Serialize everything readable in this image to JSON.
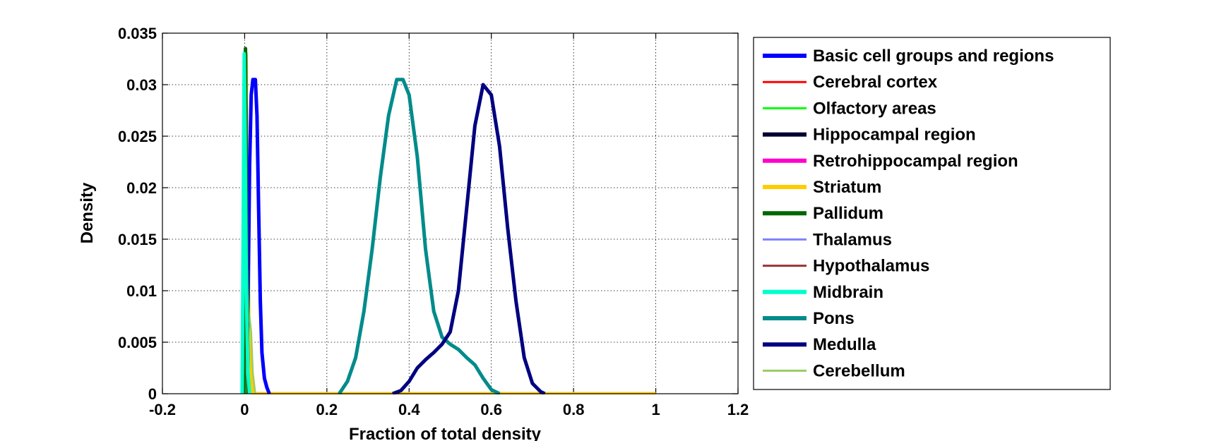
{
  "chart_data": {
    "type": "line",
    "title": "",
    "xlabel": "Fraction of total density",
    "ylabel": "Density",
    "xlim": [
      -0.2,
      1.2
    ],
    "ylim": [
      0,
      0.035
    ],
    "xticks": [
      "-0.2",
      "0",
      "0.2",
      "0.4",
      "0.6",
      "0.8",
      "1",
      "1.2"
    ],
    "yticks": [
      "0",
      "0.005",
      "0.01",
      "0.015",
      "0.02",
      "0.025",
      "0.03",
      "0.035"
    ],
    "grid": true,
    "legend_position": "outside-right",
    "series": [
      {
        "name": "Basic cell groups and regions",
        "color": "#0000ff",
        "width": "thick",
        "points": [
          [
            0.0,
            0
          ],
          [
            0.004,
            0.001
          ],
          [
            0.008,
            0.008
          ],
          [
            0.012,
            0.022
          ],
          [
            0.016,
            0.029
          ],
          [
            0.02,
            0.0305
          ],
          [
            0.026,
            0.0305
          ],
          [
            0.03,
            0.027
          ],
          [
            0.034,
            0.018
          ],
          [
            0.038,
            0.009
          ],
          [
            0.042,
            0.004
          ],
          [
            0.048,
            0.0015
          ],
          [
            0.054,
            0.0006
          ],
          [
            0.06,
            0
          ]
        ]
      },
      {
        "name": "Cerebral cortex",
        "color": "#ff0000",
        "width": "thin",
        "points": [
          [
            -0.002,
            0
          ],
          [
            0.0,
            0.02
          ],
          [
            0.002,
            0.033
          ],
          [
            0.004,
            0.02
          ],
          [
            0.008,
            0
          ]
        ]
      },
      {
        "name": "Olfactory areas",
        "color": "#00ff00",
        "width": "thin",
        "points": [
          [
            -0.002,
            0
          ],
          [
            0.0,
            0.02
          ],
          [
            0.002,
            0.033
          ],
          [
            0.004,
            0.02
          ],
          [
            0.008,
            0
          ]
        ]
      },
      {
        "name": "Hippocampal region",
        "color": "#000033",
        "width": "thick",
        "points": [
          [
            -0.002,
            0
          ],
          [
            0.0,
            0.02
          ],
          [
            0.002,
            0.033
          ],
          [
            0.004,
            0.02
          ],
          [
            0.008,
            0
          ]
        ]
      },
      {
        "name": "Retrohippocampal region",
        "color": "#ff00cc",
        "width": "thick",
        "points": [
          [
            -0.002,
            0
          ],
          [
            0.0,
            0.02
          ],
          [
            0.002,
            0.033
          ],
          [
            0.004,
            0.02
          ],
          [
            0.008,
            0
          ]
        ]
      },
      {
        "name": "Striatum",
        "color": "#ffcc00",
        "width": "thick",
        "points": [
          [
            -0.002,
            0
          ],
          [
            0.0,
            0.018
          ],
          [
            0.003,
            0.033
          ],
          [
            0.006,
            0.02
          ],
          [
            0.01,
            0.007
          ],
          [
            0.014,
            0.002
          ],
          [
            0.02,
            0
          ],
          [
            1.0,
            0
          ]
        ]
      },
      {
        "name": "Pallidum",
        "color": "#006600",
        "width": "thick",
        "points": [
          [
            -0.002,
            0
          ],
          [
            0.0,
            0.02
          ],
          [
            0.002,
            0.0335
          ],
          [
            0.004,
            0.02
          ],
          [
            0.008,
            0
          ]
        ]
      },
      {
        "name": "Thalamus",
        "color": "#8080ff",
        "width": "thin",
        "points": [
          [
            -0.002,
            0
          ],
          [
            0.0,
            0.02
          ],
          [
            0.002,
            0.033
          ],
          [
            0.004,
            0.02
          ],
          [
            0.008,
            0
          ]
        ]
      },
      {
        "name": "Hypothalamus",
        "color": "#993333",
        "width": "thin",
        "points": [
          [
            -0.002,
            0
          ],
          [
            0.0,
            0.02
          ],
          [
            0.002,
            0.033
          ],
          [
            0.004,
            0.02
          ],
          [
            0.008,
            0
          ]
        ]
      },
      {
        "name": "Midbrain",
        "color": "#00ffcc",
        "width": "thick",
        "points": [
          [
            -0.006,
            0
          ],
          [
            -0.003,
            0.02
          ],
          [
            -0.001,
            0.033
          ],
          [
            0.001,
            0.025
          ],
          [
            0.004,
            0.01
          ],
          [
            0.008,
            0.002
          ],
          [
            0.012,
            0
          ]
        ]
      },
      {
        "name": "Pons",
        "color": "#008b8b",
        "width": "thick",
        "points": [
          [
            0.23,
            0
          ],
          [
            0.25,
            0.0012
          ],
          [
            0.27,
            0.0035
          ],
          [
            0.29,
            0.008
          ],
          [
            0.31,
            0.014
          ],
          [
            0.33,
            0.021
          ],
          [
            0.35,
            0.027
          ],
          [
            0.37,
            0.0305
          ],
          [
            0.385,
            0.0305
          ],
          [
            0.4,
            0.029
          ],
          [
            0.42,
            0.023
          ],
          [
            0.44,
            0.014
          ],
          [
            0.46,
            0.008
          ],
          [
            0.48,
            0.0055
          ],
          [
            0.5,
            0.0048
          ],
          [
            0.52,
            0.0043
          ],
          [
            0.54,
            0.0035
          ],
          [
            0.56,
            0.0028
          ],
          [
            0.58,
            0.0015
          ],
          [
            0.6,
            0.0004
          ],
          [
            0.62,
            0
          ]
        ]
      },
      {
        "name": "Medulla",
        "color": "#000080",
        "width": "thick",
        "points": [
          [
            0.36,
            0
          ],
          [
            0.38,
            0.0003
          ],
          [
            0.4,
            0.0012
          ],
          [
            0.42,
            0.0025
          ],
          [
            0.44,
            0.0033
          ],
          [
            0.46,
            0.004
          ],
          [
            0.48,
            0.0048
          ],
          [
            0.5,
            0.006
          ],
          [
            0.52,
            0.01
          ],
          [
            0.54,
            0.018
          ],
          [
            0.56,
            0.026
          ],
          [
            0.58,
            0.03
          ],
          [
            0.6,
            0.029
          ],
          [
            0.62,
            0.024
          ],
          [
            0.64,
            0.016
          ],
          [
            0.66,
            0.009
          ],
          [
            0.68,
            0.0035
          ],
          [
            0.7,
            0.001
          ],
          [
            0.72,
            0.0002
          ],
          [
            0.73,
            0
          ]
        ]
      },
      {
        "name": "Cerebellum",
        "color": "#99cc66",
        "width": "thin",
        "points": [
          [
            0.004,
            0
          ],
          [
            0.006,
            0.005
          ],
          [
            0.008,
            0.012
          ],
          [
            0.01,
            0.007
          ],
          [
            0.012,
            0.0075
          ],
          [
            0.016,
            0.006
          ],
          [
            0.02,
            0.002
          ],
          [
            0.026,
            0
          ]
        ]
      }
    ]
  }
}
